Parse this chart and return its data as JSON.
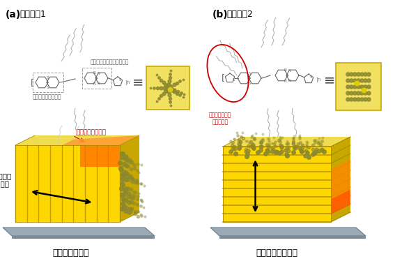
{
  "title_a": "(a)",
  "title_b": "(b)",
  "polymer1": "ポリマー1",
  "polymer2": "ポリマー2",
  "label_nbt": "ナフトビスチアジアゾール",
  "label_ndt": "ナフトジチオフェン",
  "label_new_alkyl": "新たに導入した\nアルキル基",
  "label_charge_dir": "電荷が流れる方向",
  "label_polymer_dir": "ポリマーの\n配列方向",
  "label_edge": "エッジオン配向",
  "label_face": "フェイスオン配向",
  "bg_color": "#ffffff",
  "yellow_face": "#FFD700",
  "yellow_top": "#F5E84A",
  "yellow_side": "#C8A800",
  "yellow_stripe": "#B89600",
  "gray_platform": "#9BAAB5",
  "gray_platform_dark": "#7A8E99",
  "orange_glow": "#FF8800",
  "red_color": "#CC0000",
  "chain_color": "#AAAAAA",
  "ring_color": "#666666",
  "mol_dot_color": "#8B8830"
}
